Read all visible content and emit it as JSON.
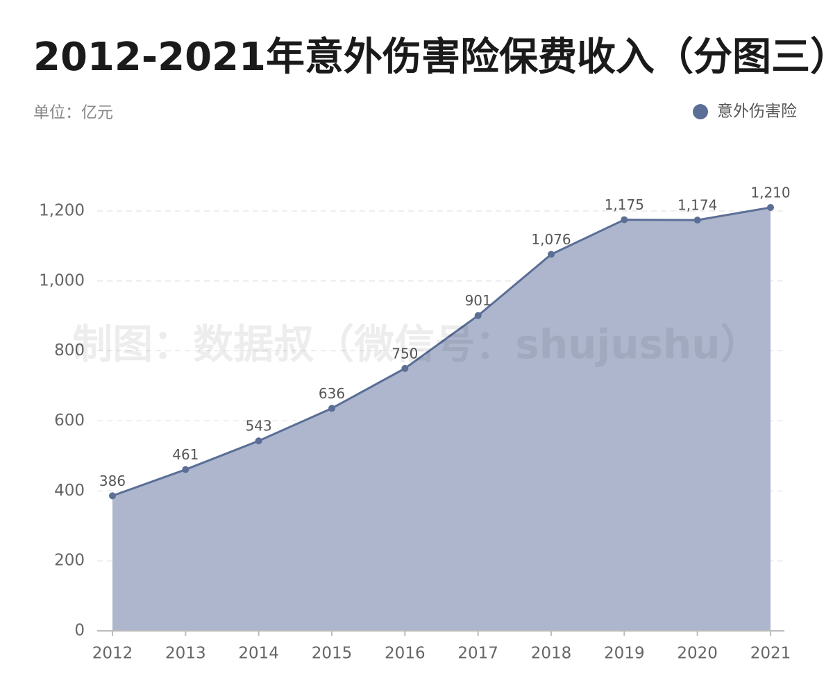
{
  "chart_data": {
    "type": "area",
    "title": "2012-2021年意外伤害险保费收入（分图三）",
    "subtitle": "单位：亿元",
    "watermark": "制图：数据叔（微信号：shujushu）",
    "categories": [
      "2012",
      "2013",
      "2014",
      "2015",
      "2016",
      "2017",
      "2018",
      "2019",
      "2020",
      "2021"
    ],
    "series": [
      {
        "name": "意外伤害险",
        "color": "#5a6e96",
        "fill": "#adb6cc",
        "values": [
          386,
          461,
          543,
          636,
          750,
          901,
          1076,
          1175,
          1174,
          1210
        ],
        "value_labels": [
          "386",
          "461",
          "543",
          "636",
          "750",
          "901",
          "1,076",
          "1,175",
          "1,174",
          "1,210"
        ]
      }
    ],
    "ylim": [
      0,
      1200
    ],
    "yticks": [
      0,
      200,
      400,
      600,
      800,
      {
        "value": 1000,
        "label": "1,000"
      },
      {
        "value": 1200,
        "label": "1,200"
      }
    ],
    "grid": true,
    "legend": "top-right"
  }
}
